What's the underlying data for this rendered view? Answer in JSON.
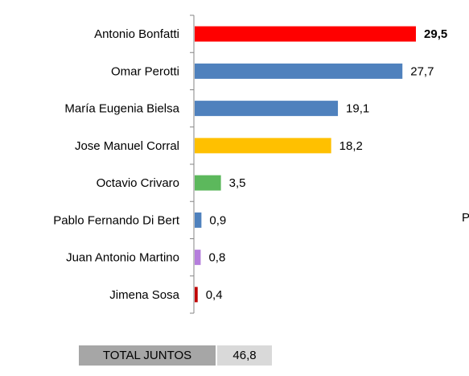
{
  "chart_data": {
    "type": "bar",
    "orientation": "horizontal",
    "categories": [
      "Antonio Bonfatti",
      "Omar Perotti",
      "María Eugenia Bielsa",
      "Jose Manuel Corral",
      "Octavio Crivaro",
      "Pablo Fernando Di Bert",
      "Juan Antonio Martino",
      "Jimena Sosa"
    ],
    "values": [
      29.5,
      27.7,
      19.1,
      18.2,
      3.5,
      0.9,
      0.8,
      0.4
    ],
    "value_labels": [
      "29,5",
      "27,7",
      "19,1",
      "18,2",
      "3,5",
      "0,9",
      "0,8",
      "0,4"
    ],
    "bold_labels": [
      true,
      false,
      false,
      false,
      false,
      false,
      false,
      false
    ],
    "colors": [
      "#ff0000",
      "#4f81bd",
      "#4f81bd",
      "#ffc000",
      "#5cb85c",
      "#4f81bd",
      "#b57edc",
      "#c00000"
    ],
    "xlim": [
      0,
      31
    ],
    "grid": false,
    "legend": "none"
  },
  "edge_text": "P",
  "total": {
    "label": "TOTAL JUNTOS",
    "value": "46,8"
  }
}
